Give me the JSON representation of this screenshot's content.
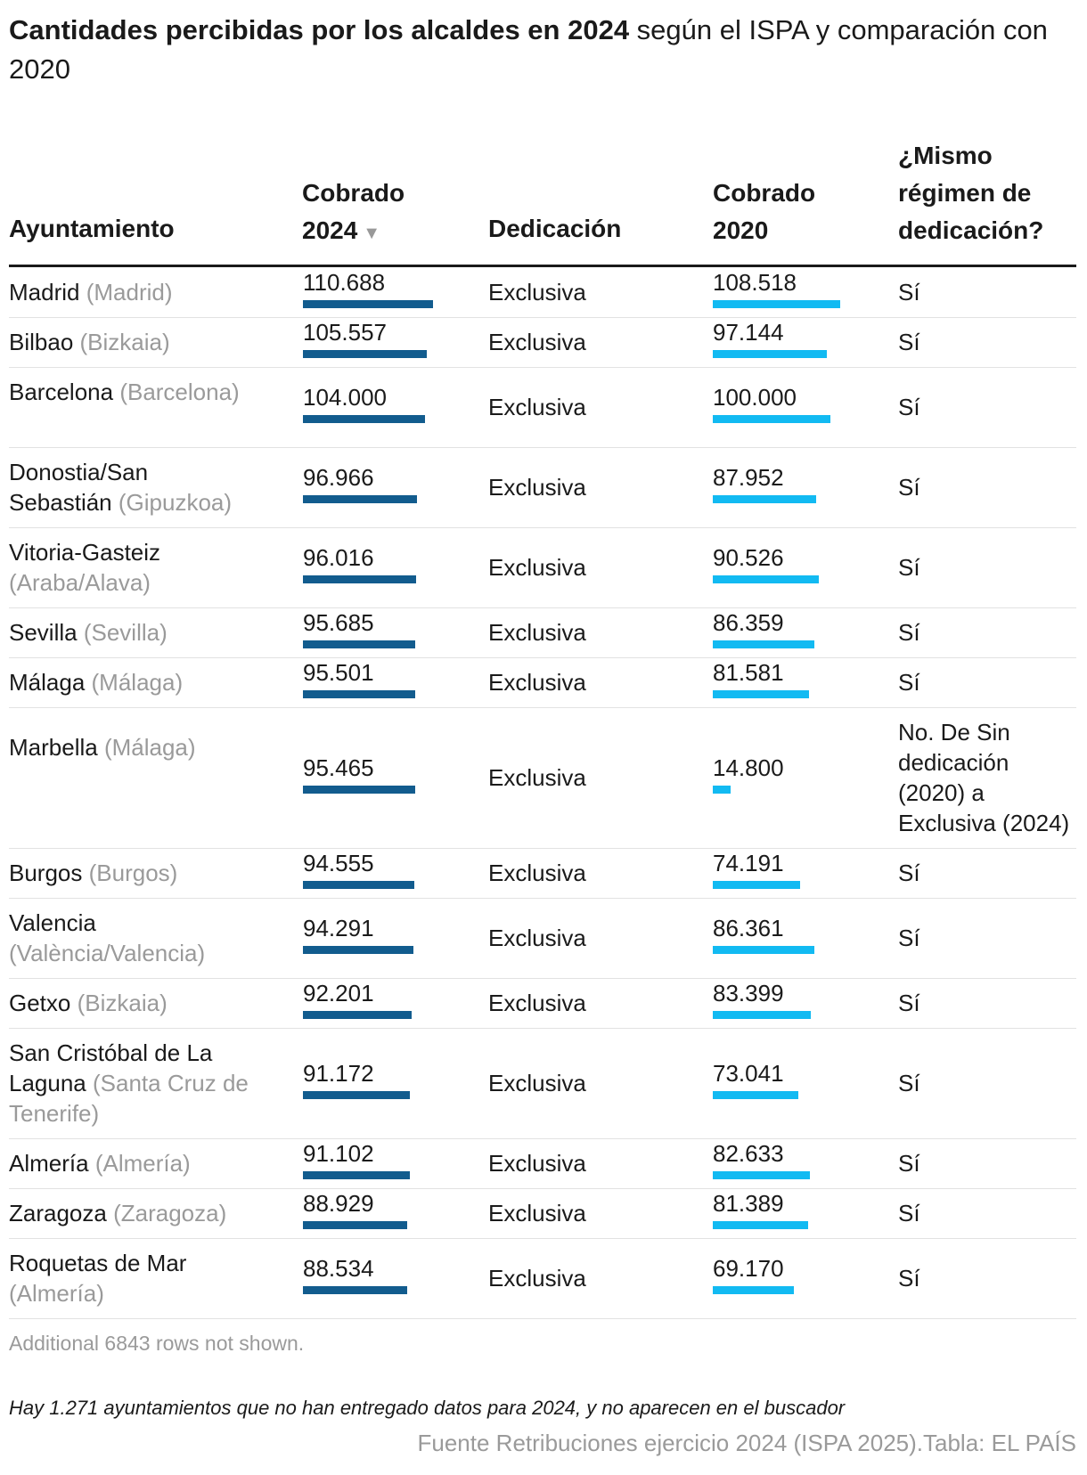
{
  "title": {
    "bold": "Cantidades percibidas por los alcaldes en 2024",
    "rest": " según el ISPA y comparación con 2020"
  },
  "headers": {
    "ayuntamiento": "Ayuntamiento",
    "cobrado2024_line1": "Cobrado",
    "cobrado2024_line2": "2024",
    "sort_arrow": "▼",
    "dedicacion": "Dedicación",
    "cobrado2020_line1": "Cobrado",
    "cobrado2020_line2": "2020",
    "mismo_line1": "¿Mismo",
    "mismo_line2": "régimen de",
    "mismo_line3": "dedicación?"
  },
  "colors": {
    "bar_2024": "#125c8e",
    "bar_2020": "#12baf2"
  },
  "chart_data": {
    "type": "table",
    "columns": [
      "Ayuntamiento",
      "Cobrado 2024",
      "Dedicación",
      "Cobrado 2020",
      "¿Mismo régimen de dedicación?"
    ],
    "bar_scale_max": 110688,
    "rows": [
      {
        "city": "Madrid",
        "province": "(Madrid)",
        "c2024": 110688,
        "c2024_label": "110.688",
        "ded": "Exclusiva",
        "c2020": 108518,
        "c2020_label": "108.518",
        "igual": "Sí"
      },
      {
        "city": "Bilbao",
        "province": "(Bizkaia)",
        "c2024": 105557,
        "c2024_label": "105.557",
        "ded": "Exclusiva",
        "c2020": 97144,
        "c2020_label": "97.144",
        "igual": "Sí"
      },
      {
        "city": "Barcelona",
        "province": "(Barcelona)",
        "c2024": 104000,
        "c2024_label": "104.000",
        "ded": "Exclusiva",
        "c2020": 100000,
        "c2020_label": "100.000",
        "igual": "Sí"
      },
      {
        "city": "Donostia/San Sebastián",
        "province": "(Gipuzkoa)",
        "c2024": 96966,
        "c2024_label": "96.966",
        "ded": "Exclusiva",
        "c2020": 87952,
        "c2020_label": "87.952",
        "igual": "Sí"
      },
      {
        "city": "Vitoria-Gasteiz",
        "province": "(Araba/Alava)",
        "c2024": 96016,
        "c2024_label": "96.016",
        "ded": "Exclusiva",
        "c2020": 90526,
        "c2020_label": "90.526",
        "igual": "Sí"
      },
      {
        "city": "Sevilla",
        "province": "(Sevilla)",
        "c2024": 95685,
        "c2024_label": "95.685",
        "ded": "Exclusiva",
        "c2020": 86359,
        "c2020_label": "86.359",
        "igual": "Sí"
      },
      {
        "city": "Málaga",
        "province": "(Málaga)",
        "c2024": 95501,
        "c2024_label": "95.501",
        "ded": "Exclusiva",
        "c2020": 81581,
        "c2020_label": "81.581",
        "igual": "Sí"
      },
      {
        "city": "Marbella",
        "province": "(Málaga)",
        "c2024": 95465,
        "c2024_label": "95.465",
        "ded": "Exclusiva",
        "c2020": 14800,
        "c2020_label": "14.800",
        "igual": "No. De Sin dedicación (2020) a Exclusiva (2024)"
      },
      {
        "city": "Burgos",
        "province": "(Burgos)",
        "c2024": 94555,
        "c2024_label": "94.555",
        "ded": "Exclusiva",
        "c2020": 74191,
        "c2020_label": "74.191",
        "igual": "Sí"
      },
      {
        "city": "Valencia",
        "province": "(València/Valencia)",
        "c2024": 94291,
        "c2024_label": "94.291",
        "ded": "Exclusiva",
        "c2020": 86361,
        "c2020_label": "86.361",
        "igual": "Sí"
      },
      {
        "city": "Getxo",
        "province": "(Bizkaia)",
        "c2024": 92201,
        "c2024_label": "92.201",
        "ded": "Exclusiva",
        "c2020": 83399,
        "c2020_label": "83.399",
        "igual": "Sí"
      },
      {
        "city": "San Cristóbal de La Laguna",
        "province": "(Santa Cruz de Tenerife)",
        "c2024": 91172,
        "c2024_label": "91.172",
        "ded": "Exclusiva",
        "c2020": 73041,
        "c2020_label": "73.041",
        "igual": "Sí"
      },
      {
        "city": "Almería",
        "province": "(Almería)",
        "c2024": 91102,
        "c2024_label": "91.102",
        "ded": "Exclusiva",
        "c2020": 82633,
        "c2020_label": "82.633",
        "igual": "Sí"
      },
      {
        "city": "Zaragoza",
        "province": "(Zaragoza)",
        "c2024": 88929,
        "c2024_label": "88.929",
        "ded": "Exclusiva",
        "c2020": 81389,
        "c2020_label": "81.389",
        "igual": "Sí"
      },
      {
        "city": "Roquetas de Mar",
        "province": "(Almería)",
        "c2024": 88534,
        "c2024_label": "88.534",
        "ded": "Exclusiva",
        "c2020": 69170,
        "c2020_label": "69.170",
        "igual": "Sí"
      }
    ]
  },
  "footer": {
    "more_rows": "Additional 6843 rows not shown.",
    "note": "Hay 1.271 ayuntamientos que no han entregado datos para 2024, y no aparecen en el buscador",
    "source": "Fuente Retribuciones ejercicio 2024 (ISPA 2025).Tabla: EL PAÍS"
  }
}
